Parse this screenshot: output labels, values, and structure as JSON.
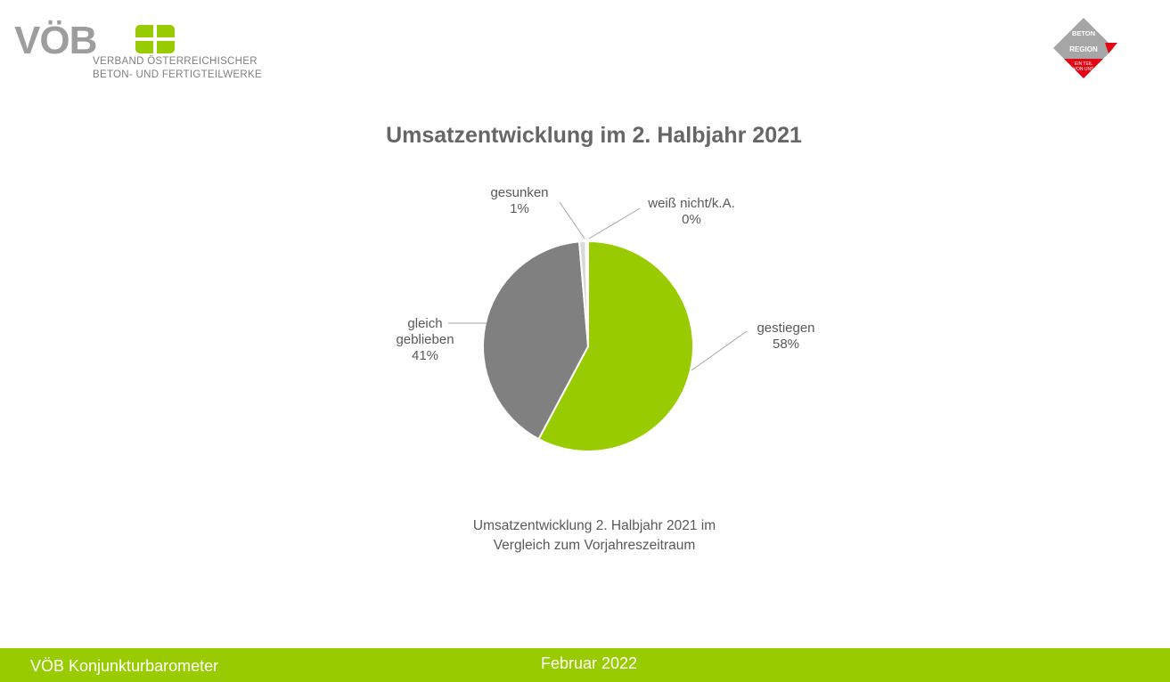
{
  "header": {
    "logo_text": "VÖB",
    "logo_subline_1": "VERBAND ÖSTERREICHISCHER",
    "logo_subline_2": "BETON- UND FERTIGTEILWERKE",
    "badge_line_1": "BETON",
    "badge_line_2": "REGION",
    "badge_line_3": "EIN TEIL",
    "badge_line_4": "VON UNS"
  },
  "chart_data": {
    "type": "pie",
    "title": "Umsatzentwicklung im 2. Halbjahr 2021",
    "slices": [
      {
        "name": "gestiegen",
        "value": 58,
        "label": "58%",
        "color": "#99cc00"
      },
      {
        "name": "gleich geblieben",
        "value": 41,
        "label": "41%",
        "color": "#808080"
      },
      {
        "name": "gesunken",
        "value": 1,
        "label": "1%",
        "color": "#d9d9d9"
      },
      {
        "name": "weiß nicht/k.A.",
        "value": 0,
        "label": "0%",
        "color": "#f2f2f2"
      }
    ],
    "caption_line_1": "Umsatzentwicklung 2. Halbjahr 2021 im",
    "caption_line_2": "Vergleich zum Vorjahreszeitraum"
  },
  "footer": {
    "left_text": "VÖB Konjunkturbarometer",
    "center_text": "Februar 2022"
  },
  "colors": {
    "brand_green": "#99cc00",
    "brand_gray": "#808080",
    "badge_red": "#e30613"
  }
}
